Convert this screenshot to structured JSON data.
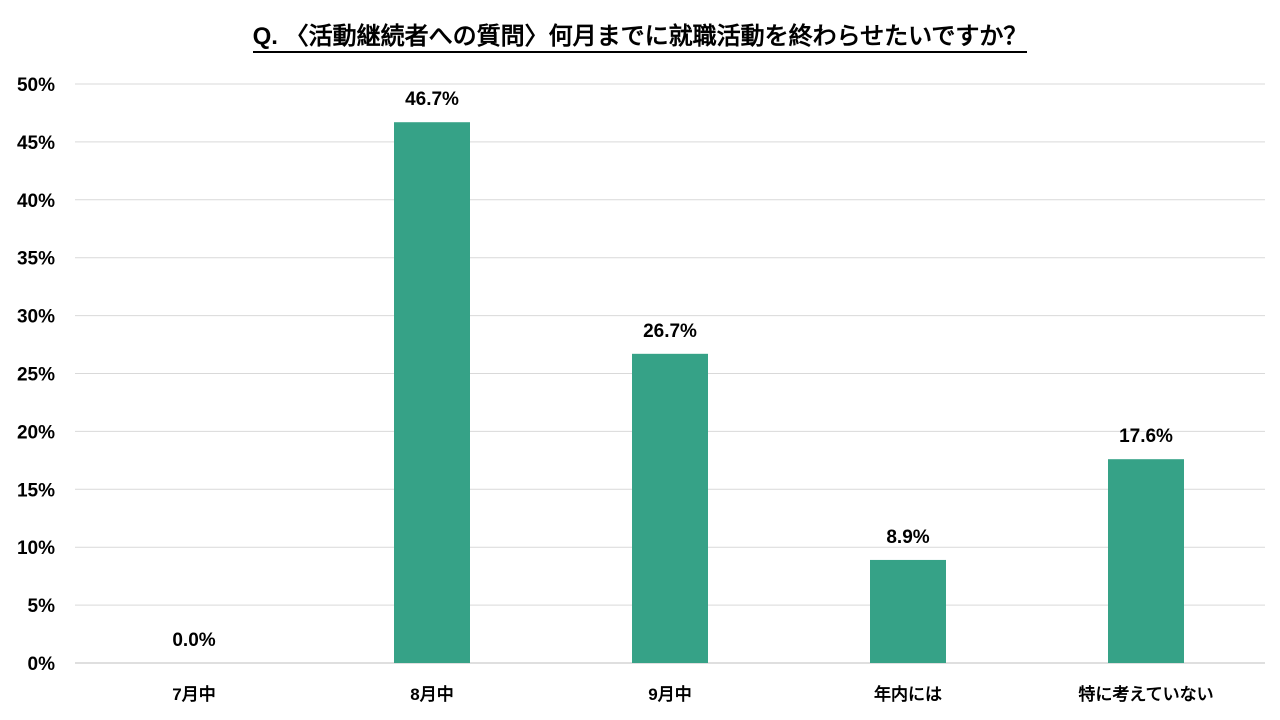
{
  "chart_data": {
    "type": "bar",
    "title": "Q. 〈活動継続者への質問〉何月までに就職活動を終わらせたいですか？",
    "categories": [
      "7月中",
      "8月中",
      "9月中",
      "年内には",
      "特に考えていない"
    ],
    "values": [
      0.0,
      46.7,
      26.7,
      8.9,
      17.6
    ],
    "data_labels": [
      "0.0%",
      "46.7%",
      "26.7%",
      "8.9%",
      "17.6%"
    ],
    "y_ticks": [
      "0%",
      "5%",
      "10%",
      "15%",
      "20%",
      "25%",
      "30%",
      "35%",
      "40%",
      "45%",
      "50%"
    ],
    "ylim": [
      0,
      50
    ],
    "y_unit": "%",
    "grid": true,
    "legend": "none",
    "bar_color": "#36a287",
    "grid_color": "#d9d9d9",
    "axis_color": "#bfbfbf",
    "text_color": "#000000"
  }
}
